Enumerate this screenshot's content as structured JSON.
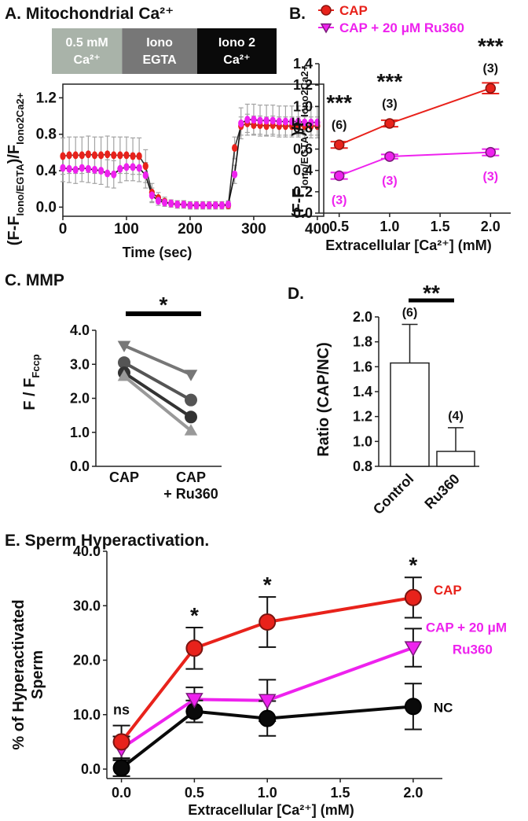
{
  "chart_data": [
    {
      "id": "A",
      "type": "line",
      "title": "A. Mitochondrial Ca²⁺",
      "xlabel": "Time (sec)",
      "ylabel": "(F-F_Iono/EGTA)/F_Iono2Ca2+",
      "xlim": [
        0,
        410
      ],
      "ylim": [
        -0.1,
        1.35
      ],
      "xticks": [
        "0",
        "100",
        "200",
        "300",
        "400"
      ],
      "yticks": [
        "0.0",
        "0.4",
        "0.8",
        "1.2"
      ],
      "conditions": [
        {
          "label": "0.5 mM Ca²⁺",
          "start": 0,
          "end": 128,
          "color": "#a9b3a9"
        },
        {
          "label": "Iono EGTA",
          "start": 128,
          "end": 265,
          "color": "#777777"
        },
        {
          "label": "Iono 2 Ca²⁺",
          "start": 265,
          "end": 410,
          "color": "#0a0a0a"
        }
      ],
      "x": [
        0,
        10,
        20,
        30,
        40,
        50,
        60,
        70,
        80,
        90,
        100,
        110,
        120,
        130,
        140,
        150,
        160,
        170,
        180,
        190,
        200,
        210,
        220,
        230,
        240,
        250,
        260,
        270,
        280,
        290,
        300,
        310,
        320,
        330,
        340,
        350,
        360,
        370,
        380,
        390,
        400
      ],
      "series": [
        {
          "name": "CAP",
          "color": "#e8221b",
          "values": [
            0.56,
            0.57,
            0.57,
            0.57,
            0.58,
            0.57,
            0.57,
            0.58,
            0.57,
            0.57,
            0.57,
            0.56,
            0.56,
            0.45,
            0.16,
            0.1,
            0.06,
            0.04,
            0.03,
            0.03,
            0.02,
            0.02,
            0.02,
            0.02,
            0.02,
            0.02,
            0.02,
            0.65,
            0.89,
            0.92,
            0.9,
            0.9,
            0.89,
            0.9,
            0.89,
            0.89,
            0.89,
            0.89,
            0.89,
            0.89,
            0.89
          ],
          "error": [
            0.2,
            0.2,
            0.2,
            0.2,
            0.2,
            0.2,
            0.2,
            0.2,
            0.2,
            0.2,
            0.2,
            0.2,
            0.2,
            0.18,
            0.1,
            0.06,
            0.05,
            0.04,
            0.04,
            0.04,
            0.04,
            0.04,
            0.04,
            0.04,
            0.04,
            0.04,
            0.04,
            0.12,
            0.1,
            0.1,
            0.1,
            0.1,
            0.1,
            0.1,
            0.1,
            0.1,
            0.1,
            0.1,
            0.1,
            0.1,
            0.1
          ]
        },
        {
          "name": "CAP + 20 μM Ru360",
          "color": "#ee22ee",
          "values": [
            0.43,
            0.42,
            0.41,
            0.43,
            0.42,
            0.41,
            0.4,
            0.37,
            0.36,
            0.42,
            0.44,
            0.44,
            0.43,
            0.35,
            0.13,
            0.07,
            0.05,
            0.04,
            0.03,
            0.03,
            0.02,
            0.02,
            0.02,
            0.02,
            0.02,
            0.02,
            0.03,
            0.36,
            0.92,
            0.96,
            0.96,
            0.95,
            0.95,
            0.95,
            0.94,
            0.94,
            0.94,
            0.94,
            0.93,
            0.93,
            0.93
          ],
          "error": [
            0.15,
            0.15,
            0.15,
            0.15,
            0.15,
            0.15,
            0.15,
            0.15,
            0.15,
            0.15,
            0.15,
            0.15,
            0.15,
            0.14,
            0.08,
            0.05,
            0.04,
            0.04,
            0.04,
            0.04,
            0.04,
            0.04,
            0.04,
            0.04,
            0.04,
            0.04,
            0.04,
            0.1,
            0.17,
            0.17,
            0.17,
            0.17,
            0.17,
            0.17,
            0.17,
            0.17,
            0.17,
            0.17,
            0.17,
            0.17,
            0.17
          ]
        }
      ]
    },
    {
      "id": "B",
      "type": "line",
      "title": "B.",
      "xlabel": "Extracellular [Ca²⁺] (mM)",
      "ylabel": "(F-F_Iono/EGTA)/F_Iono2Ca2+",
      "xlim": [
        0.3,
        2.2
      ],
      "ylim": [
        0,
        1.4
      ],
      "xticks": [
        "0.5",
        "1.0",
        "1.5",
        "2.0"
      ],
      "yticks": [
        "0.0",
        "0.2",
        "0.4",
        "0.6",
        "0.8",
        "1.0",
        "1.2",
        "1.4"
      ],
      "legend": "top",
      "x": [
        0.5,
        1.0,
        2.0
      ],
      "significance": [
        "***",
        "***",
        "***"
      ],
      "series": [
        {
          "name": "CAP",
          "color": "#e8221b",
          "values": [
            0.64,
            0.84,
            1.17
          ],
          "error": [
            0.03,
            0.03,
            0.05
          ],
          "n": [
            "(6)",
            "(3)",
            "(3)"
          ]
        },
        {
          "name": "CAP + 20 μM Ru360",
          "color": "#ee22ee",
          "values": [
            0.35,
            0.53,
            0.57
          ],
          "error": [
            0.03,
            0.02,
            0.03
          ],
          "n": [
            "(3)",
            "(3)",
            "(3)"
          ]
        }
      ]
    },
    {
      "id": "C",
      "type": "scatter",
      "title": "C. MMP",
      "ylabel": "F / F_Fccp",
      "ylim": [
        0,
        4.0
      ],
      "yticks": [
        "0.0",
        "1.0",
        "2.0",
        "3.0",
        "4.0"
      ],
      "categories": [
        "CAP",
        "CAP + Ru360"
      ],
      "category_colors": [
        "#e8221b",
        "#ee22ee"
      ],
      "significance": "*",
      "pairs": [
        {
          "marker": "triangle-down",
          "color": "#777777",
          "values": [
            3.55,
            2.7
          ]
        },
        {
          "marker": "circle",
          "color": "#555555",
          "values": [
            3.05,
            1.95
          ]
        },
        {
          "marker": "circle",
          "color": "#333333",
          "values": [
            2.75,
            1.45
          ]
        },
        {
          "marker": "triangle-up",
          "color": "#999999",
          "values": [
            2.65,
            1.05
          ]
        }
      ]
    },
    {
      "id": "D",
      "type": "bar",
      "title": "D.",
      "ylabel": "Ratio (CAP/NC)",
      "ylim": [
        0.8,
        2.0
      ],
      "yticks": [
        "0.8",
        "1.0",
        "1.2",
        "1.4",
        "1.6",
        "1.8",
        "2.0"
      ],
      "categories": [
        "Control",
        "Ru360"
      ],
      "values": [
        1.63,
        0.92
      ],
      "error": [
        0.31,
        0.19
      ],
      "n": [
        "(6)",
        "(4)"
      ],
      "significance": "**"
    },
    {
      "id": "E",
      "type": "line",
      "title": "E. Sperm Hyperactivation.",
      "xlabel": "Extracellular [Ca²⁺] (mM)",
      "ylabel": "% of Hyperactivated Sperm",
      "xlim": [
        -0.1,
        2.2
      ],
      "ylim": [
        0,
        40
      ],
      "xticks": [
        "0.0",
        "0.5",
        "1.0",
        "1.5",
        "2.0"
      ],
      "yticks": [
        "0.0",
        "10.0",
        "20.0",
        "30.0",
        "40.0"
      ],
      "x": [
        0,
        0.5,
        1.0,
        2.0
      ],
      "significance": [
        "ns",
        "*",
        "*",
        "*"
      ],
      "series": [
        {
          "name": "CAP",
          "color": "#e8221b",
          "marker": "circle",
          "values": [
            5.0,
            22.2,
            27.0,
            31.5
          ],
          "error": [
            3.0,
            3.8,
            4.6,
            3.7
          ]
        },
        {
          "name": "CAP + 20 μM Ru360",
          "color": "#ee22ee",
          "marker": "triangle-down",
          "values": [
            3.8,
            12.8,
            12.6,
            22.3
          ],
          "error": [
            2.2,
            2.2,
            3.8,
            3.5
          ]
        },
        {
          "name": "NC",
          "color": "#0a0a0a",
          "marker": "circle",
          "values": [
            0.2,
            10.6,
            9.3,
            11.5
          ],
          "error": [
            1.5,
            2.0,
            3.2,
            4.2
          ]
        }
      ]
    }
  ]
}
